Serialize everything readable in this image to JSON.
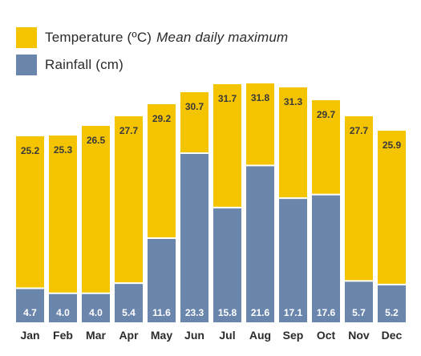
{
  "legend": {
    "temperature_label": "Temperature (ºC)",
    "temperature_note": "Mean daily maximum",
    "rainfall_label": "Rainfall (cm)"
  },
  "colors": {
    "temperature": "#F5C400",
    "rainfall": "#6B86AD"
  },
  "chart_data": {
    "type": "bar",
    "categories": [
      "Jan",
      "Feb",
      "Mar",
      "Apr",
      "May",
      "Jun",
      "Jul",
      "Aug",
      "Sep",
      "Oct",
      "Nov",
      "Dec"
    ],
    "series": [
      {
        "name": "Temperature (ºC) Mean daily maximum",
        "values": [
          25.2,
          25.3,
          26.5,
          27.7,
          29.2,
          30.7,
          31.7,
          31.8,
          31.3,
          29.7,
          27.7,
          25.9
        ]
      },
      {
        "name": "Rainfall (cm)",
        "values": [
          4.7,
          4.0,
          4.0,
          5.4,
          11.6,
          23.3,
          15.8,
          21.6,
          17.1,
          17.6,
          5.7,
          5.2
        ]
      }
    ],
    "legend_position": "top-left",
    "grid": false
  }
}
